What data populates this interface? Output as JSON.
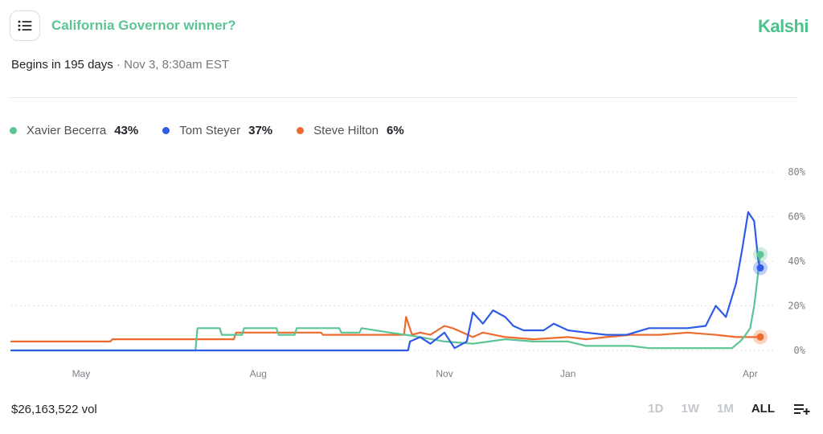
{
  "header": {
    "title": "California Governor winner?",
    "brand": "Kalshi",
    "begins": "Begins in 195 days",
    "separator": "·",
    "date": "Nov 3, 8:30am EST"
  },
  "legend": [
    {
      "name": "Xavier Becerra",
      "pct": "43%",
      "color": "#5cc495"
    },
    {
      "name": "Tom Steyer",
      "pct": "37%",
      "color": "#2f5ce6"
    },
    {
      "name": "Steve Hilton",
      "pct": "6%",
      "color": "#ee6b2d"
    }
  ],
  "footer": {
    "volume": "$26,163,522 vol",
    "ranges": [
      "1D",
      "1W",
      "1M",
      "ALL"
    ],
    "active_range": "ALL"
  },
  "icons": {
    "menu": "list-menu-icon",
    "settings": "playlist-add-icon"
  },
  "chart_data": {
    "type": "line",
    "x_unit": "date",
    "x_ticks": [
      "May",
      "Aug",
      "Nov",
      "Jan",
      "Apr"
    ],
    "y_ticks": [
      "0%",
      "20%",
      "40%",
      "60%",
      "80%"
    ],
    "ylim": [
      0,
      80
    ],
    "grid": true,
    "series": [
      {
        "name": "Xavier Becerra",
        "color": "#5cc495",
        "points": [
          [
            "2025-04-01",
            0
          ],
          [
            "2025-07-01",
            0
          ],
          [
            "2025-07-02",
            10
          ],
          [
            "2025-07-13",
            10
          ],
          [
            "2025-07-14",
            7
          ],
          [
            "2025-07-24",
            7
          ],
          [
            "2025-07-25",
            10
          ],
          [
            "2025-08-10",
            10
          ],
          [
            "2025-08-11",
            7
          ],
          [
            "2025-08-19",
            7
          ],
          [
            "2025-08-20",
            10
          ],
          [
            "2025-09-10",
            10
          ],
          [
            "2025-09-11",
            8
          ],
          [
            "2025-09-20",
            8
          ],
          [
            "2025-09-21",
            10
          ],
          [
            "2025-10-05",
            8
          ],
          [
            "2025-10-13",
            7
          ],
          [
            "2025-10-20",
            6
          ],
          [
            "2025-11-01",
            4
          ],
          [
            "2025-11-15",
            3
          ],
          [
            "2025-12-01",
            5
          ],
          [
            "2025-12-15",
            4
          ],
          [
            "2026-01-01",
            4
          ],
          [
            "2026-01-10",
            2
          ],
          [
            "2026-02-01",
            2
          ],
          [
            "2026-02-10",
            1
          ],
          [
            "2026-03-10",
            1
          ],
          [
            "2026-03-23",
            1
          ],
          [
            "2026-03-27",
            4
          ],
          [
            "2026-03-29",
            6
          ],
          [
            "2026-04-01",
            10
          ],
          [
            "2026-04-03",
            20
          ],
          [
            "2026-04-06",
            43
          ]
        ]
      },
      {
        "name": "Tom Steyer",
        "color": "#2f5ce6",
        "points": [
          [
            "2025-04-01",
            0
          ],
          [
            "2025-10-14",
            0
          ],
          [
            "2025-10-15",
            4
          ],
          [
            "2025-10-20",
            6
          ],
          [
            "2025-10-25",
            3
          ],
          [
            "2025-11-01",
            8
          ],
          [
            "2025-11-06",
            1
          ],
          [
            "2025-11-12",
            4
          ],
          [
            "2025-11-15",
            17
          ],
          [
            "2025-11-20",
            12
          ],
          [
            "2025-11-25",
            18
          ],
          [
            "2025-12-01",
            15
          ],
          [
            "2025-12-05",
            11
          ],
          [
            "2025-12-10",
            9
          ],
          [
            "2025-12-20",
            9
          ],
          [
            "2025-12-25",
            12
          ],
          [
            "2026-01-01",
            9
          ],
          [
            "2026-01-10",
            8
          ],
          [
            "2026-01-20",
            7
          ],
          [
            "2026-01-30",
            7
          ],
          [
            "2026-02-10",
            10
          ],
          [
            "2026-02-20",
            10
          ],
          [
            "2026-03-01",
            10
          ],
          [
            "2026-03-10",
            11
          ],
          [
            "2026-03-15",
            20
          ],
          [
            "2026-03-20",
            15
          ],
          [
            "2026-03-25",
            30
          ],
          [
            "2026-03-28",
            45
          ],
          [
            "2026-03-31",
            62
          ],
          [
            "2026-04-03",
            58
          ],
          [
            "2026-04-05",
            40
          ],
          [
            "2026-04-06",
            37
          ]
        ]
      },
      {
        "name": "Steve Hilton",
        "color": "#ee6b2d",
        "points": [
          [
            "2025-04-01",
            4
          ],
          [
            "2025-05-20",
            4
          ],
          [
            "2025-05-21",
            5
          ],
          [
            "2025-07-01",
            5
          ],
          [
            "2025-07-20",
            5
          ],
          [
            "2025-07-21",
            8
          ],
          [
            "2025-09-01",
            8
          ],
          [
            "2025-09-02",
            7
          ],
          [
            "2025-10-12",
            7
          ],
          [
            "2025-10-13",
            15
          ],
          [
            "2025-10-16",
            7
          ],
          [
            "2025-10-20",
            8
          ],
          [
            "2025-10-25",
            7
          ],
          [
            "2025-11-01",
            11
          ],
          [
            "2025-11-05",
            10
          ],
          [
            "2025-11-10",
            8
          ],
          [
            "2025-11-15",
            6
          ],
          [
            "2025-11-20",
            8
          ],
          [
            "2025-12-01",
            6
          ],
          [
            "2025-12-15",
            5
          ],
          [
            "2026-01-01",
            6
          ],
          [
            "2026-01-10",
            5
          ],
          [
            "2026-01-20",
            6
          ],
          [
            "2026-02-01",
            7
          ],
          [
            "2026-02-15",
            7
          ],
          [
            "2026-03-01",
            8
          ],
          [
            "2026-03-15",
            7
          ],
          [
            "2026-03-25",
            6
          ],
          [
            "2026-04-06",
            6
          ]
        ]
      }
    ]
  }
}
